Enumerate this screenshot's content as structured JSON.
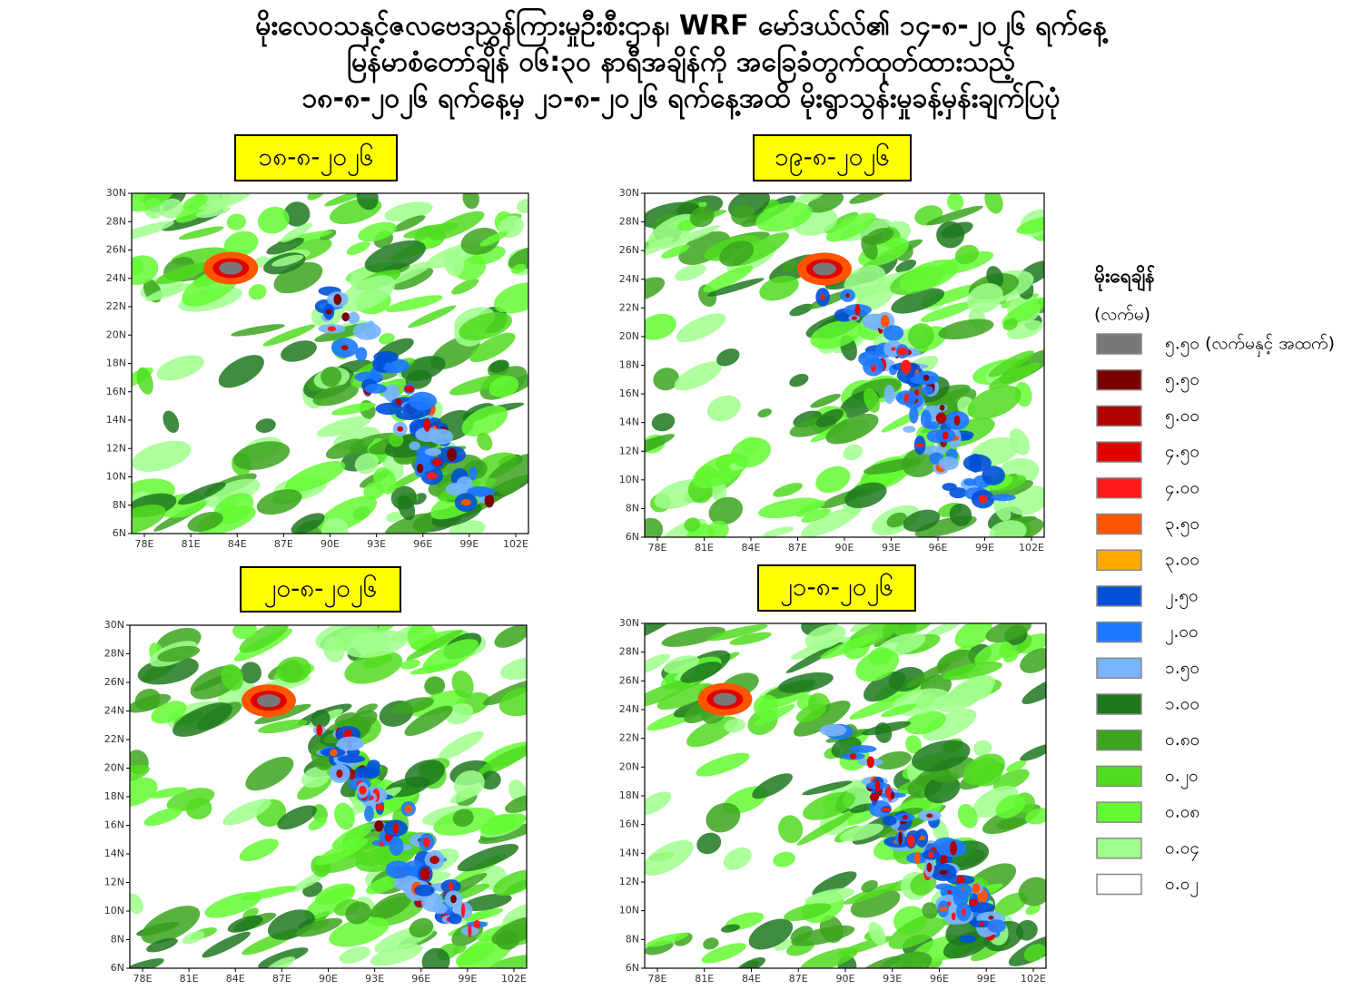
{
  "title": [
    "မိုးလေဝသနှင့်ဇလဗေဒညွှန်ကြားမှုဦးစီးဌာန၊ WRF မော်ဒယ်လ်၏ ၁၄-၈-၂၀၂၆ ရက်နေ့",
    "မြန်မာစံတော်ချိန် ၀၆:၃၀ နာရီအချိန်ကို အခြေခံတွက်ထုတ်ထားသည့်",
    "၁၈-၈-၂၀၂၆ ရက်နေ့မှ ၂၁-၈-၂၀၂၆ ရက်နေ့အထိ မိုးရွာသွန်းမှုခန့်မှန်းချက်ပြပုံ"
  ],
  "panels": [
    {
      "date": "၁၈-၈-၂၀၂၆"
    },
    {
      "date": "၁၉-၈-၂၀၂၆"
    },
    {
      "date": "၂၀-၈-၂၀၂၆"
    },
    {
      "date": "၂၁-၈-၂၀၂၆"
    }
  ],
  "lat_ticks": [
    "6N",
    "8N",
    "10N",
    "12N",
    "14N",
    "16N",
    "18N",
    "20N",
    "22N",
    "24N",
    "26N",
    "28N",
    "30N"
  ],
  "lon_ticks": [
    "78E",
    "81E",
    "84E",
    "87E",
    "90E",
    "93E",
    "96E",
    "99E",
    "102E"
  ],
  "legend": {
    "title": "မိုးရေချိန်",
    "unit": "(လက်မ)",
    "items": [
      {
        "label": "၅.၅၀ (လက်မနှင့် အထက်)",
        "color": "#787878"
      },
      {
        "label": "၅.၅၀",
        "color": "#7a0000"
      },
      {
        "label": "၅.၀၀",
        "color": "#b00000"
      },
      {
        "label": "၄.၅၀",
        "color": "#e00000"
      },
      {
        "label": "၄.၀၀",
        "color": "#ff1a1a"
      },
      {
        "label": "၃.၅၀",
        "color": "#ff5500"
      },
      {
        "label": "၃.၀၀",
        "color": "#ffaa00"
      },
      {
        "label": "၂.၅၀",
        "color": "#0050d8"
      },
      {
        "label": "၂.၀၀",
        "color": "#1e78ff"
      },
      {
        "label": "၁.၅၀",
        "color": "#78b4ff"
      },
      {
        "label": "၁.၀၀",
        "color": "#1e781e"
      },
      {
        "label": "၀.၈၀",
        "color": "#3ca51e"
      },
      {
        "label": "၀.၂၀",
        "color": "#50dc1e"
      },
      {
        "label": "၀.၀၈",
        "color": "#64fa32"
      },
      {
        "label": "၀.၀၄",
        "color": "#a0ff8c"
      },
      {
        "label": "၀.၀၂",
        "color": "#ffffff"
      }
    ]
  }
}
